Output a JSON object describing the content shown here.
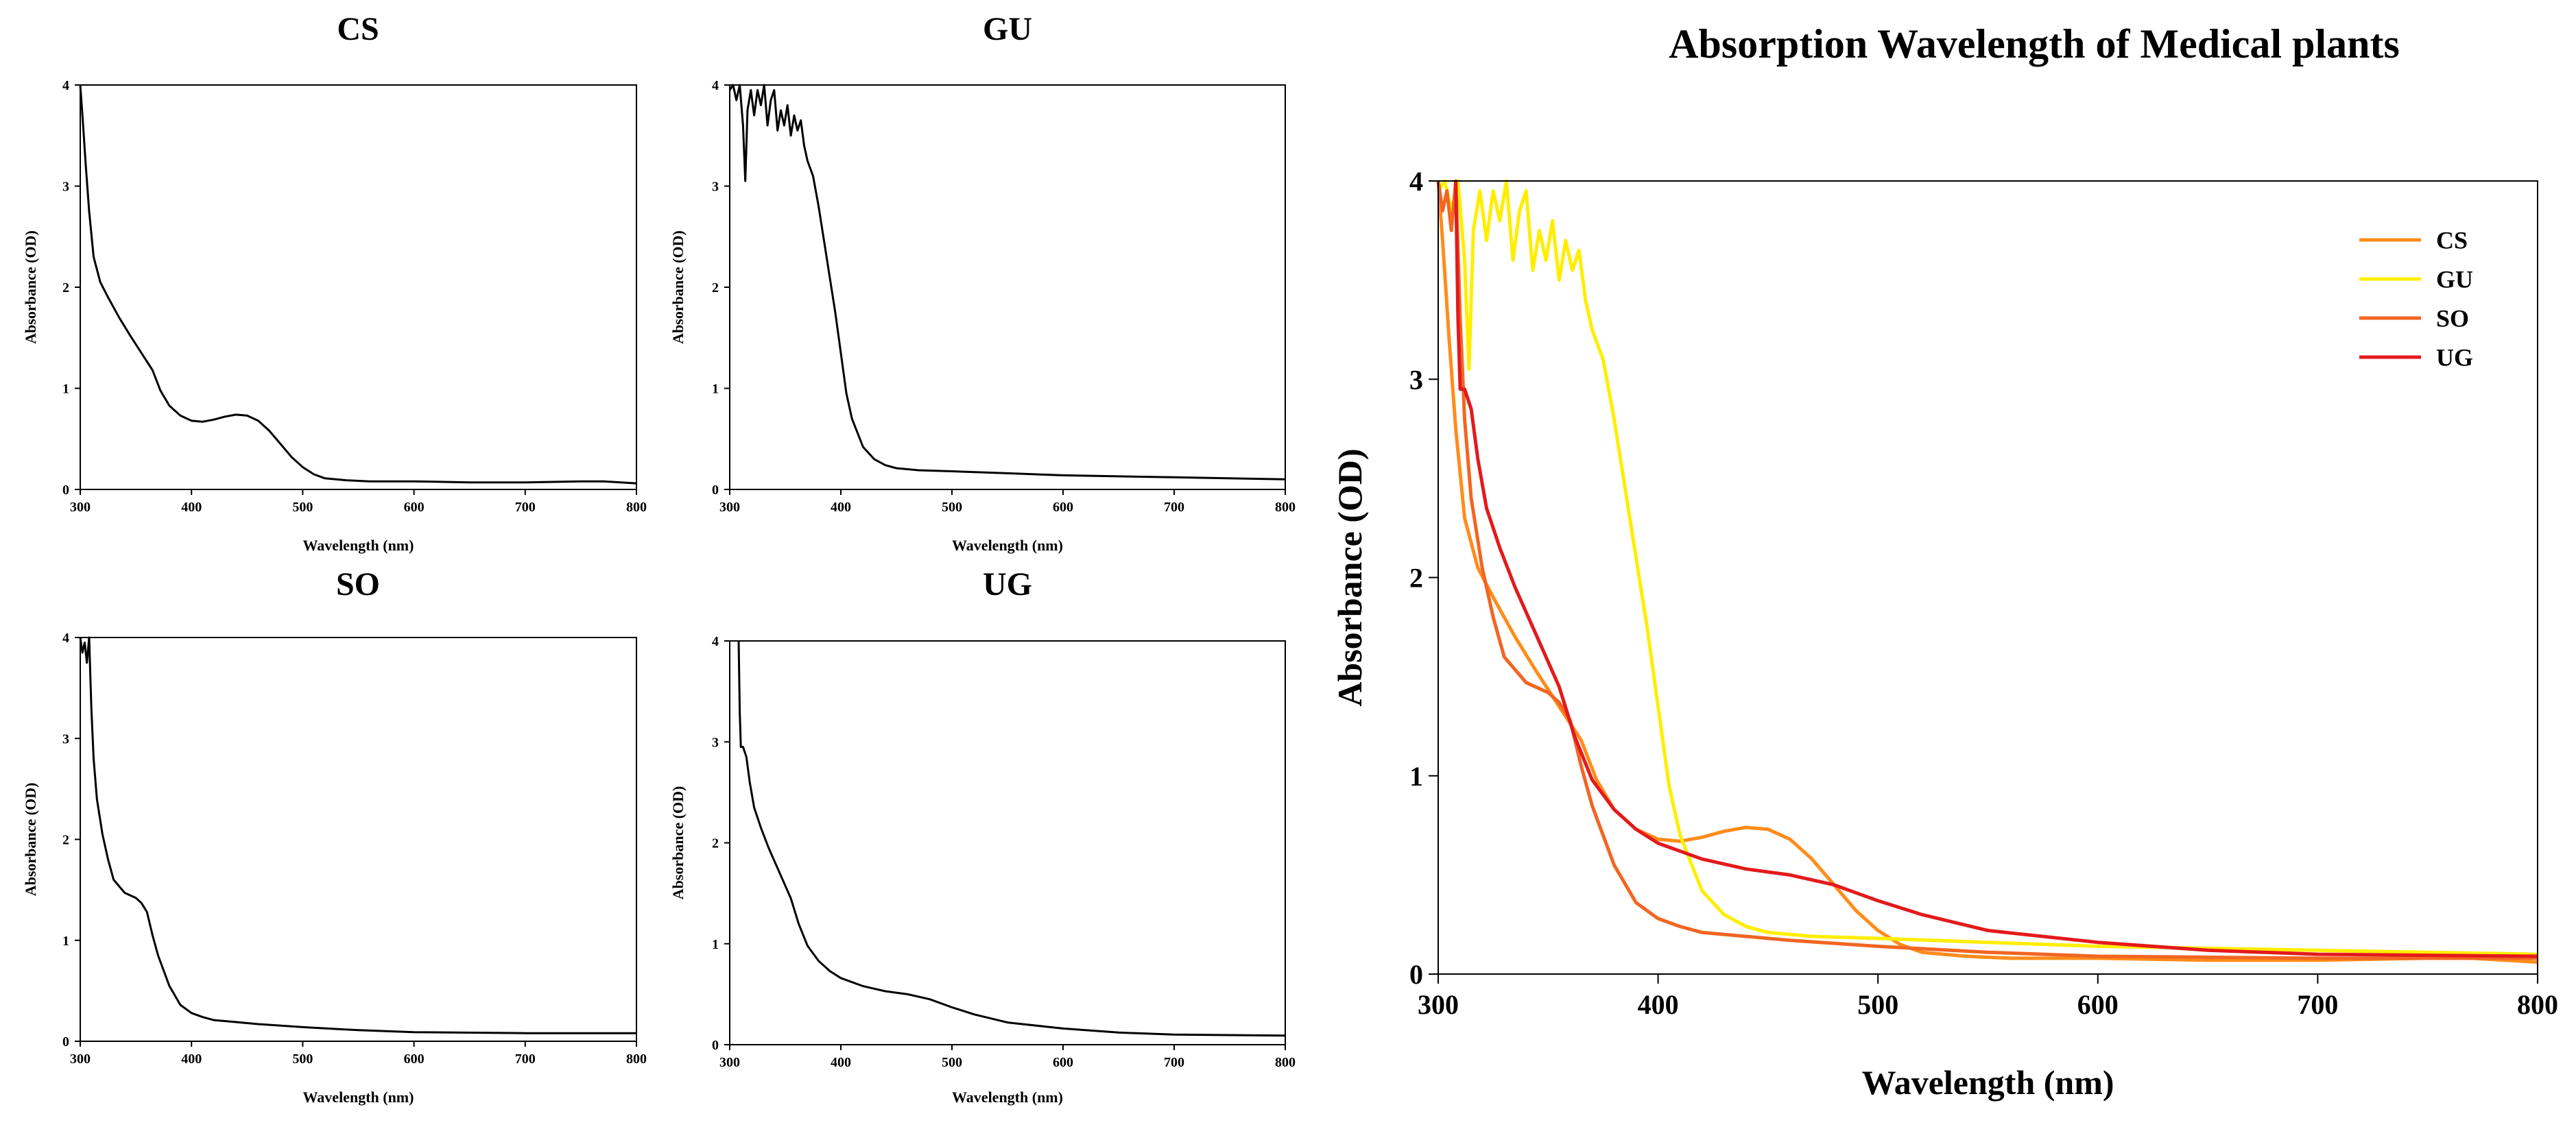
{
  "chart_data": [
    {
      "type": "line",
      "title": "CS",
      "xlabel": "Wavelength (nm)",
      "ylabel": "Absorbance (OD)",
      "xlim": [
        300,
        800
      ],
      "ylim": [
        0,
        4
      ],
      "xticks": [
        300,
        400,
        500,
        600,
        700,
        800
      ],
      "yticks": [
        0,
        1,
        2,
        3,
        4
      ],
      "series": [
        {
          "name": "CS",
          "color": "#000000",
          "x": [
            300,
            302,
            305,
            308,
            312,
            318,
            325,
            335,
            345,
            355,
            365,
            372,
            380,
            390,
            400,
            410,
            420,
            430,
            440,
            450,
            460,
            470,
            480,
            490,
            500,
            510,
            520,
            540,
            560,
            600,
            650,
            700,
            750,
            770,
            800
          ],
          "y": [
            4.0,
            3.7,
            3.2,
            2.75,
            2.3,
            2.05,
            1.9,
            1.7,
            1.52,
            1.35,
            1.18,
            0.98,
            0.83,
            0.73,
            0.68,
            0.67,
            0.69,
            0.72,
            0.74,
            0.73,
            0.68,
            0.58,
            0.45,
            0.32,
            0.22,
            0.15,
            0.11,
            0.09,
            0.08,
            0.08,
            0.07,
            0.07,
            0.08,
            0.08,
            0.06
          ]
        }
      ]
    },
    {
      "type": "line",
      "title": "GU",
      "xlabel": "Wavelength (nm)",
      "ylabel": "Absorbance (OD)",
      "xlim": [
        300,
        800
      ],
      "ylim": [
        0,
        4
      ],
      "xticks": [
        300,
        400,
        500,
        600,
        700,
        800
      ],
      "yticks": [
        0,
        1,
        2,
        3,
        4
      ],
      "series": [
        {
          "name": "GU",
          "color": "#000000",
          "x": [
            300,
            303,
            306,
            309,
            312,
            314,
            316,
            319,
            322,
            325,
            328,
            331,
            334,
            337,
            340,
            343,
            346,
            349,
            352,
            355,
            358,
            361,
            364,
            367,
            370,
            375,
            380,
            385,
            390,
            395,
            400,
            405,
            410,
            420,
            430,
            440,
            450,
            470,
            500,
            550,
            600,
            700,
            800
          ],
          "y": [
            3.95,
            4.0,
            3.85,
            4.0,
            3.6,
            3.05,
            3.75,
            3.95,
            3.7,
            3.95,
            3.8,
            4.0,
            3.6,
            3.85,
            3.95,
            3.55,
            3.75,
            3.6,
            3.8,
            3.5,
            3.7,
            3.55,
            3.65,
            3.4,
            3.25,
            3.1,
            2.8,
            2.45,
            2.1,
            1.75,
            1.35,
            0.95,
            0.7,
            0.42,
            0.3,
            0.24,
            0.21,
            0.19,
            0.18,
            0.16,
            0.14,
            0.12,
            0.1
          ]
        }
      ]
    },
    {
      "type": "line",
      "title": "SO",
      "xlabel": "Wavelength (nm)",
      "ylabel": "Absorbance (OD)",
      "xlim": [
        300,
        800
      ],
      "ylim": [
        0,
        4
      ],
      "xticks": [
        300,
        400,
        500,
        600,
        700,
        800
      ],
      "yticks": [
        0,
        1,
        2,
        3,
        4
      ],
      "series": [
        {
          "name": "SO",
          "color": "#000000",
          "x": [
            300,
            302,
            304,
            306,
            308,
            310,
            312,
            315,
            320,
            325,
            330,
            340,
            350,
            355,
            360,
            365,
            370,
            380,
            390,
            400,
            410,
            420,
            440,
            460,
            500,
            550,
            600,
            700,
            800
          ],
          "y": [
            4.0,
            3.85,
            3.95,
            3.75,
            4.0,
            3.3,
            2.8,
            2.4,
            2.05,
            1.8,
            1.6,
            1.47,
            1.42,
            1.37,
            1.28,
            1.05,
            0.85,
            0.55,
            0.36,
            0.28,
            0.24,
            0.21,
            0.19,
            0.17,
            0.14,
            0.11,
            0.09,
            0.08,
            0.08
          ]
        }
      ]
    },
    {
      "type": "line",
      "title": "UG",
      "xlabel": "Wavelength (nm)",
      "ylabel": "Absorbance (OD)",
      "xlim": [
        300,
        800
      ],
      "ylim": [
        0,
        4
      ],
      "xticks": [
        300,
        400,
        500,
        600,
        700,
        800
      ],
      "yticks": [
        0,
        1,
        2,
        3,
        4
      ],
      "series": [
        {
          "name": "UG",
          "color": "#000000",
          "x": [
            308,
            309,
            310,
            312,
            315,
            318,
            322,
            328,
            335,
            345,
            355,
            362,
            370,
            380,
            390,
            400,
            420,
            440,
            460,
            480,
            500,
            520,
            550,
            600,
            650,
            700,
            800
          ],
          "y": [
            4.0,
            3.3,
            2.95,
            2.95,
            2.85,
            2.6,
            2.35,
            2.15,
            1.95,
            1.7,
            1.45,
            1.2,
            0.98,
            0.83,
            0.73,
            0.66,
            0.58,
            0.53,
            0.5,
            0.45,
            0.37,
            0.3,
            0.22,
            0.16,
            0.12,
            0.1,
            0.09
          ]
        }
      ]
    },
    {
      "type": "line",
      "title": "Absorption Wavelength of Medical plants",
      "xlabel": "Wavelength (nm)",
      "ylabel": "Absorbance (OD)",
      "xlim": [
        300,
        800
      ],
      "ylim": [
        0,
        4
      ],
      "xticks": [
        300,
        400,
        500,
        600,
        700,
        800
      ],
      "yticks": [
        0,
        1,
        2,
        3,
        4
      ],
      "legend": "top-right",
      "series": [
        {
          "name": "CS",
          "color": "#ff8c1a",
          "x": [
            300,
            302,
            305,
            308,
            312,
            318,
            325,
            335,
            345,
            355,
            365,
            372,
            380,
            390,
            400,
            410,
            420,
            430,
            440,
            450,
            460,
            470,
            480,
            490,
            500,
            510,
            520,
            540,
            560,
            600,
            650,
            700,
            750,
            770,
            800
          ],
          "y": [
            4.0,
            3.7,
            3.2,
            2.75,
            2.3,
            2.05,
            1.9,
            1.7,
            1.52,
            1.35,
            1.18,
            0.98,
            0.83,
            0.73,
            0.68,
            0.67,
            0.69,
            0.72,
            0.74,
            0.73,
            0.68,
            0.58,
            0.45,
            0.32,
            0.22,
            0.15,
            0.11,
            0.09,
            0.08,
            0.08,
            0.07,
            0.07,
            0.08,
            0.08,
            0.06
          ]
        },
        {
          "name": "GU",
          "color": "#ffee00",
          "x": [
            300,
            303,
            306,
            309,
            312,
            314,
            316,
            319,
            322,
            325,
            328,
            331,
            334,
            337,
            340,
            343,
            346,
            349,
            352,
            355,
            358,
            361,
            364,
            367,
            370,
            375,
            380,
            385,
            390,
            395,
            400,
            405,
            410,
            420,
            430,
            440,
            450,
            470,
            500,
            550,
            600,
            700,
            800
          ],
          "y": [
            3.95,
            4.0,
            3.85,
            4.0,
            3.6,
            3.05,
            3.75,
            3.95,
            3.7,
            3.95,
            3.8,
            4.0,
            3.6,
            3.85,
            3.95,
            3.55,
            3.75,
            3.6,
            3.8,
            3.5,
            3.7,
            3.55,
            3.65,
            3.4,
            3.25,
            3.1,
            2.8,
            2.45,
            2.1,
            1.75,
            1.35,
            0.95,
            0.7,
            0.42,
            0.3,
            0.24,
            0.21,
            0.19,
            0.18,
            0.16,
            0.14,
            0.12,
            0.1
          ]
        },
        {
          "name": "SO",
          "color": "#f26522",
          "x": [
            300,
            302,
            304,
            306,
            308,
            310,
            312,
            315,
            320,
            325,
            330,
            340,
            350,
            355,
            360,
            365,
            370,
            380,
            390,
            400,
            410,
            420,
            440,
            460,
            500,
            550,
            600,
            700,
            800
          ],
          "y": [
            4.0,
            3.85,
            3.95,
            3.75,
            4.0,
            3.3,
            2.8,
            2.4,
            2.05,
            1.8,
            1.6,
            1.47,
            1.42,
            1.37,
            1.28,
            1.05,
            0.85,
            0.55,
            0.36,
            0.28,
            0.24,
            0.21,
            0.19,
            0.17,
            0.14,
            0.11,
            0.09,
            0.08,
            0.08
          ]
        },
        {
          "name": "UG",
          "color": "#e31a1c",
          "x": [
            308,
            309,
            310,
            312,
            315,
            318,
            322,
            328,
            335,
            345,
            355,
            362,
            370,
            380,
            390,
            400,
            420,
            440,
            460,
            480,
            500,
            520,
            550,
            600,
            650,
            700,
            800
          ],
          "y": [
            4.0,
            3.3,
            2.95,
            2.95,
            2.85,
            2.6,
            2.35,
            2.15,
            1.95,
            1.7,
            1.45,
            1.2,
            0.98,
            0.83,
            0.73,
            0.66,
            0.58,
            0.53,
            0.5,
            0.45,
            0.37,
            0.3,
            0.22,
            0.16,
            0.12,
            0.1,
            0.09
          ]
        }
      ]
    }
  ]
}
